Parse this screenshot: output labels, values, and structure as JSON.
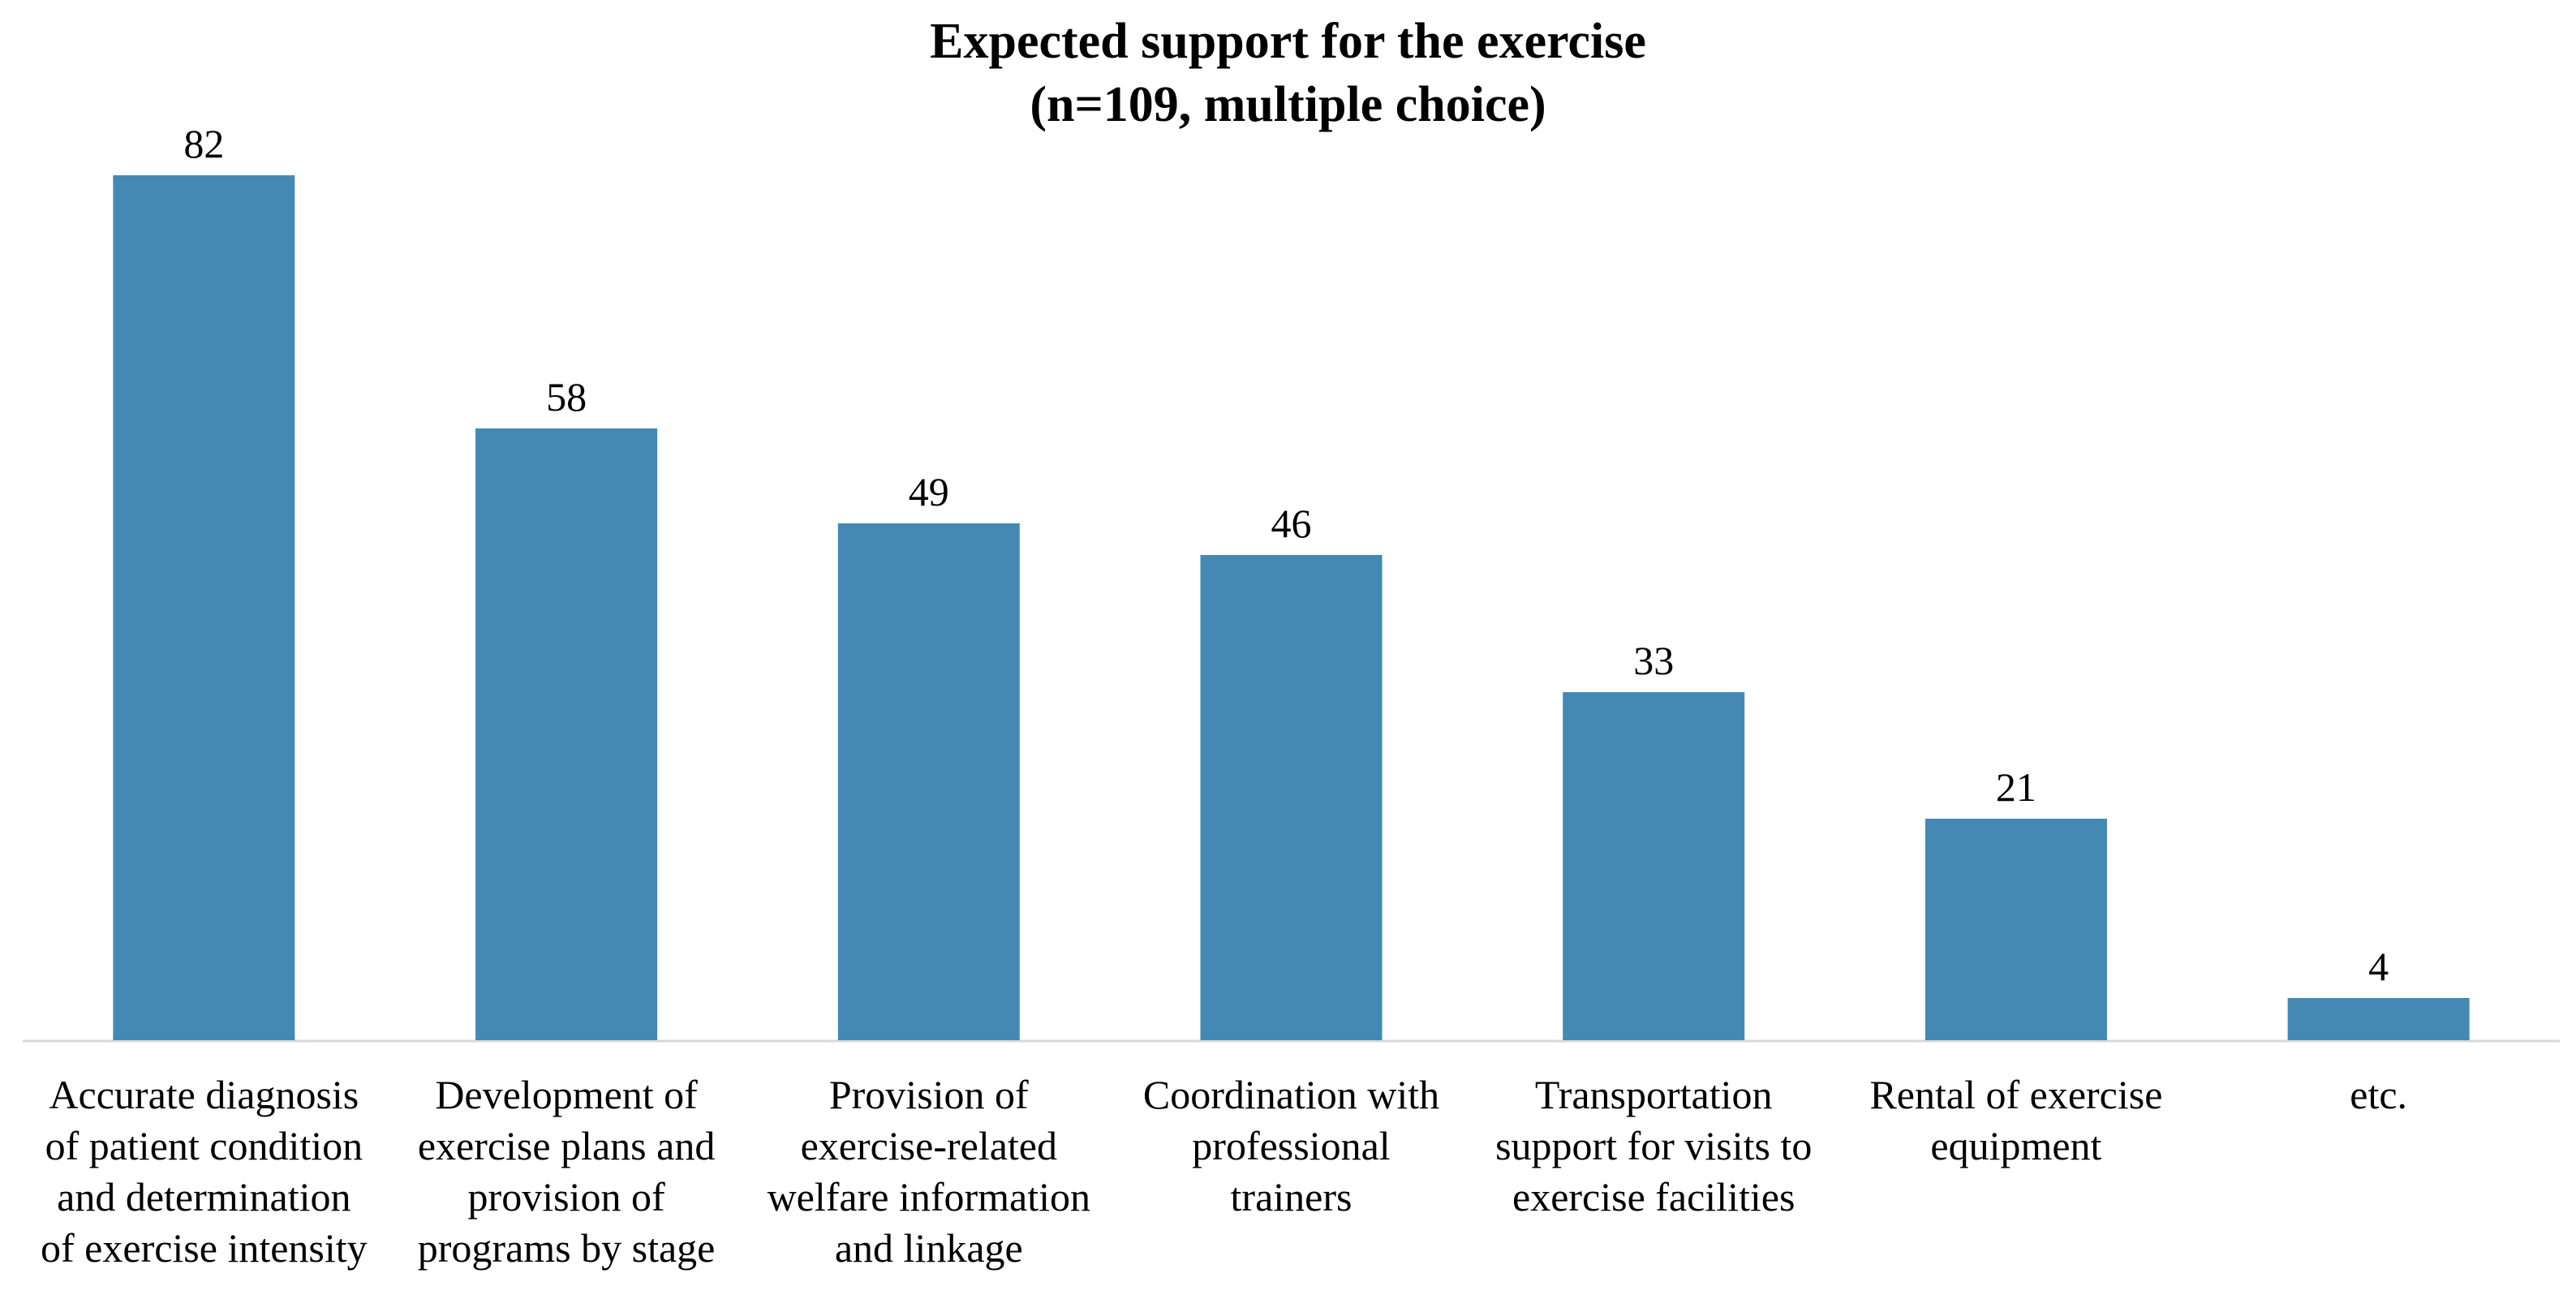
{
  "chart_data": {
    "type": "bar",
    "title": "Expected support for the exercise",
    "subtitle": "(n=109, multiple choice)",
    "categories": [
      [
        "Accurate diagnosis",
        "of patient condition",
        "and determination",
        "of exercise intensity"
      ],
      [
        "Development of",
        "exercise plans and",
        "provision of",
        "programs by stage"
      ],
      [
        "Provision of",
        "exercise-related",
        "welfare information",
        "and linkage"
      ],
      [
        "Coordination with",
        "professional",
        "trainers"
      ],
      [
        "Transportation",
        "support for visits to",
        "exercise facilities"
      ],
      [
        "Rental of exercise",
        "equipment"
      ],
      [
        "etc."
      ]
    ],
    "values": [
      82,
      58,
      49,
      46,
      33,
      21,
      4
    ],
    "data_labels": [
      "82",
      "58",
      "49",
      "46",
      "33",
      "21",
      "4"
    ],
    "xlabel": "",
    "ylabel": "",
    "ylim": [
      0,
      82
    ],
    "grid": false,
    "legend": "none",
    "colors": {
      "bar": "#4389B3",
      "axis": "#D9D9D9",
      "text": "#000000"
    }
  }
}
